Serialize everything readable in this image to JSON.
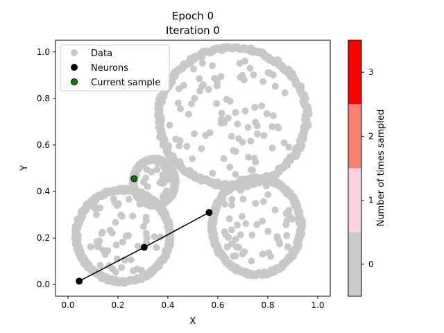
{
  "chart_data": {
    "type": "scatter",
    "title": "Epoch 0",
    "subtitle": "Iteration 0",
    "xlabel": "X",
    "ylabel": "Y",
    "xlim": [
      -0.05,
      1.05
    ],
    "ylim": [
      -0.05,
      1.05
    ],
    "xticks": [
      "0.0",
      "0.2",
      "0.4",
      "0.6",
      "0.8",
      "1.0"
    ],
    "yticks": [
      "0.0",
      "0.2",
      "0.4",
      "0.6",
      "0.8",
      "1.0"
    ],
    "xtick_values": [
      0,
      0.2,
      0.4,
      0.6,
      0.8,
      1.0
    ],
    "ytick_values": [
      0,
      0.2,
      0.4,
      0.6,
      0.8,
      1.0
    ],
    "grid": false,
    "legend_position": "top-left",
    "legend": [
      {
        "label": "Data",
        "color": "#c8c8c8",
        "edge": "#c8c8c8"
      },
      {
        "label": "Neurons",
        "color": "#000000",
        "edge": "#000000"
      },
      {
        "label": "Current sample",
        "color": "#008000",
        "edge": "#000000"
      }
    ],
    "data_color": "#c8c8c8",
    "clusters": [
      {
        "name": "large-top-right",
        "cx": 0.66,
        "cy": 0.72,
        "rx": 0.3,
        "ry": 0.3
      },
      {
        "name": "lower-right",
        "cx": 0.755,
        "cy": 0.25,
        "rx": 0.18,
        "ry": 0.21
      },
      {
        "name": "lower-left",
        "cx": 0.22,
        "cy": 0.21,
        "rx": 0.19,
        "ry": 0.2
      },
      {
        "name": "small-middle",
        "cx": 0.345,
        "cy": 0.44,
        "rx": 0.085,
        "ry": 0.1
      }
    ],
    "neurons": [
      {
        "x": 0.045,
        "y": 0.015
      },
      {
        "x": 0.305,
        "y": 0.16
      },
      {
        "x": 0.565,
        "y": 0.31
      }
    ],
    "neuron_color": "#000000",
    "current_sample": {
      "x": 0.265,
      "y": 0.455,
      "color": "#008000"
    },
    "colorbar": {
      "label": "Number of times sampled",
      "ticks": [
        "0",
        "1",
        "2",
        "3"
      ],
      "levels": [
        {
          "value": 0,
          "color": "#cccccc"
        },
        {
          "value": 1,
          "color": "#ffd0df"
        },
        {
          "value": 2,
          "color": "#fa8072"
        },
        {
          "value": 3,
          "color": "#ff0000"
        }
      ]
    }
  }
}
